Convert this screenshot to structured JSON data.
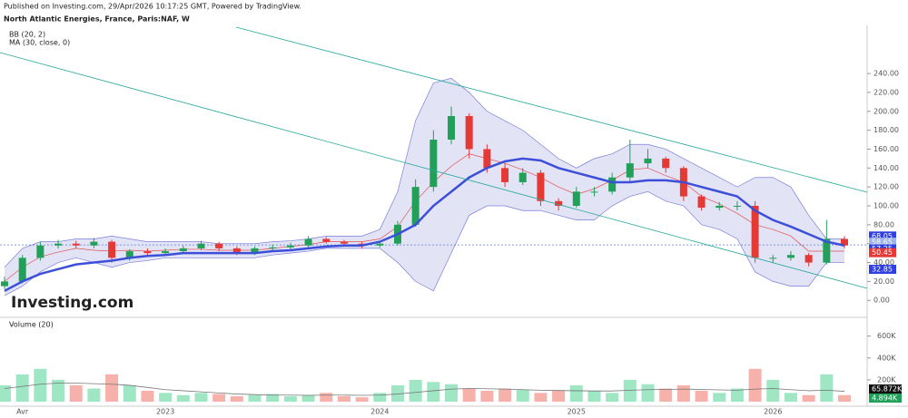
{
  "header": {
    "published": "Published on Investing.com, 29/Apr/2026   10:17:25 GMT, Powered by TradingView.",
    "watermark": "Investing.com"
  },
  "chart_data": {
    "type": "candlestick",
    "title": "North Atlantic Energies, France, Paris:NAF, W",
    "categories": [
      null,
      "Avr",
      null,
      null,
      null,
      null,
      null,
      null,
      null,
      "2023",
      null,
      null,
      null,
      null,
      null,
      null,
      null,
      null,
      null,
      null,
      null,
      "2024",
      null,
      null,
      null,
      null,
      null,
      null,
      null,
      null,
      null,
      null,
      "2025",
      null,
      null,
      null,
      null,
      null,
      null,
      null,
      null,
      null,
      null,
      "2026",
      null,
      null,
      null,
      null
    ],
    "open": [
      15,
      20,
      45,
      58,
      60,
      58,
      62,
      45,
      52,
      50,
      52,
      55,
      60,
      55,
      50,
      55,
      56,
      58,
      65,
      62,
      60,
      58,
      60,
      80,
      120,
      170,
      195,
      160,
      140,
      125,
      135,
      105,
      100,
      115,
      115,
      130,
      145,
      150,
      140,
      110,
      98,
      100,
      100,
      45,
      45,
      48,
      40,
      65
    ],
    "high": [
      25,
      48,
      62,
      64,
      63,
      66,
      64,
      54,
      55,
      55,
      58,
      63,
      62,
      57,
      57,
      59,
      61,
      68,
      67,
      64,
      62,
      63,
      84,
      128,
      180,
      205,
      198,
      165,
      145,
      140,
      138,
      108,
      120,
      120,
      135,
      170,
      160,
      152,
      142,
      112,
      104,
      105,
      105,
      48,
      52,
      50,
      85,
      68
    ],
    "low": [
      12,
      18,
      42,
      55,
      55,
      55,
      40,
      42,
      48,
      48,
      50,
      53,
      52,
      48,
      48,
      52,
      54,
      55,
      60,
      58,
      55,
      56,
      58,
      78,
      115,
      165,
      150,
      135,
      120,
      122,
      100,
      95,
      98,
      110,
      112,
      125,
      140,
      135,
      105,
      95,
      95,
      95,
      40,
      40,
      42,
      36,
      38,
      55
    ],
    "close": [
      20,
      45,
      58,
      60,
      58,
      62,
      45,
      52,
      50,
      52,
      55,
      60,
      55,
      50,
      55,
      56,
      58,
      65,
      62,
      60,
      58,
      60,
      80,
      120,
      170,
      195,
      160,
      140,
      125,
      135,
      105,
      100,
      115,
      115,
      130,
      145,
      150,
      140,
      110,
      98,
      100,
      100,
      45,
      45,
      48,
      40,
      65,
      58
    ],
    "up_color": "#22a05a",
    "down_color": "#e53935",
    "ylim": [
      -18,
      289
    ],
    "yticks": [
      {
        "value": 0,
        "label": "0.00"
      },
      {
        "value": 20,
        "label": "20.00"
      },
      {
        "value": 40,
        "label": "40.00"
      },
      {
        "value": 60,
        "label": "60.00"
      },
      {
        "value": 80,
        "label": "80.00"
      },
      {
        "value": 100,
        "label": "100.00"
      },
      {
        "value": 120,
        "label": "120.00"
      },
      {
        "value": 140,
        "label": "140.00"
      },
      {
        "value": 160,
        "label": "160.00"
      },
      {
        "value": 180,
        "label": "180.00"
      },
      {
        "value": 200,
        "label": "200.00"
      },
      {
        "value": 220,
        "label": "220.00"
      },
      {
        "value": 240,
        "label": "240.00"
      }
    ],
    "indicators": [
      {
        "name": "BB (20, 2)",
        "color": "#7b7fd8",
        "fill": "#e2e3f5",
        "middle_color": "#e05252",
        "upper": [
          35,
          55,
          62,
          62,
          65,
          65,
          68,
          65,
          62,
          62,
          62,
          62,
          60,
          60,
          60,
          62,
          63,
          65,
          68,
          68,
          68,
          75,
          115,
          190,
          230,
          235,
          220,
          200,
          190,
          180,
          165,
          150,
          140,
          150,
          155,
          165,
          165,
          160,
          150,
          140,
          130,
          120,
          130,
          130,
          120,
          90,
          65,
          65
        ],
        "middle": [
          20,
          35,
          46,
          51,
          55,
          53,
          52,
          53,
          52,
          53,
          54,
          54,
          53,
          53,
          53,
          55,
          57,
          59,
          62,
          62,
          62,
          65,
          78,
          105,
          125,
          142,
          155,
          150,
          145,
          138,
          130,
          120,
          112,
          118,
          127,
          138,
          140,
          132,
          125,
          110,
          102,
          92,
          80,
          75,
          68,
          52,
          52,
          52
        ],
        "lower": [
          5,
          15,
          30,
          40,
          45,
          40,
          35,
          40,
          42,
          45,
          45,
          45,
          45,
          45,
          45,
          48,
          50,
          52,
          55,
          55,
          55,
          55,
          40,
          20,
          10,
          50,
          90,
          100,
          100,
          95,
          95,
          90,
          85,
          85,
          100,
          110,
          115,
          105,
          100,
          80,
          75,
          65,
          30,
          20,
          15,
          15,
          40,
          40
        ]
      },
      {
        "name": "MA (30, close, 0)",
        "color": "#3d4fd8",
        "values": [
          10,
          20,
          28,
          33,
          38,
          40,
          42,
          45,
          47,
          48,
          50,
          50,
          50,
          50,
          50,
          52,
          53,
          55,
          57,
          58,
          58,
          62,
          70,
          80,
          100,
          115,
          130,
          140,
          147,
          150,
          148,
          140,
          135,
          130,
          125,
          125,
          127,
          127,
          125,
          120,
          115,
          110,
          95,
          85,
          78,
          70,
          62,
          58
        ]
      }
    ],
    "price_labels": [
      {
        "value": 68.05,
        "label": "68.05",
        "color": "#2f3fe0"
      },
      {
        "value": 58.65,
        "label": "58.65",
        "color": "#9fb3e8"
      },
      {
        "value": 57.25,
        "label": "57.25",
        "color": "#2f3fe0"
      },
      {
        "value": 50.45,
        "label": "50.45",
        "color": "#e53935"
      },
      {
        "value": 32.85,
        "label": "32.85",
        "color": "#2f3fe0"
      }
    ],
    "volume": {
      "name": "Volume (20)",
      "up_color": "#9ee6c4",
      "down_color": "#f6b1aa",
      "ma_color": "#777",
      "values": [
        150000,
        250000,
        300000,
        200000,
        150000,
        120000,
        250000,
        150000,
        100000,
        80000,
        60000,
        80000,
        70000,
        50000,
        60000,
        70000,
        50000,
        60000,
        80000,
        50000,
        40000,
        80000,
        150000,
        200000,
        180000,
        160000,
        120000,
        100000,
        120000,
        110000,
        80000,
        100000,
        150000,
        100000,
        80000,
        200000,
        160000,
        120000,
        150000,
        100000,
        80000,
        120000,
        300000,
        200000,
        80000,
        60000,
        250000,
        60000
      ],
      "ma": [
        120000,
        140000,
        160000,
        170000,
        170000,
        165000,
        160000,
        150000,
        130000,
        110000,
        100000,
        90000,
        80000,
        70000,
        65000,
        60000,
        60000,
        58000,
        60000,
        60000,
        58000,
        60000,
        70000,
        85000,
        100000,
        115000,
        120000,
        118000,
        115000,
        110000,
        105000,
        102000,
        100000,
        98000,
        98000,
        105000,
        110000,
        112000,
        115000,
        112000,
        108000,
        105000,
        115000,
        120000,
        110000,
        100000,
        105000,
        95000
      ],
      "ylim": [
        0,
        730000
      ],
      "yticks": [
        {
          "value": 200000,
          "label": "200K"
        },
        {
          "value": 400000,
          "label": "400K"
        },
        {
          "value": 600000,
          "label": "600K"
        }
      ],
      "last_labels": [
        {
          "value": 65872,
          "label": "65.872K",
          "color": "#111"
        },
        {
          "value": 4894,
          "label": "4.894K",
          "color": "#22a05a"
        }
      ]
    }
  }
}
